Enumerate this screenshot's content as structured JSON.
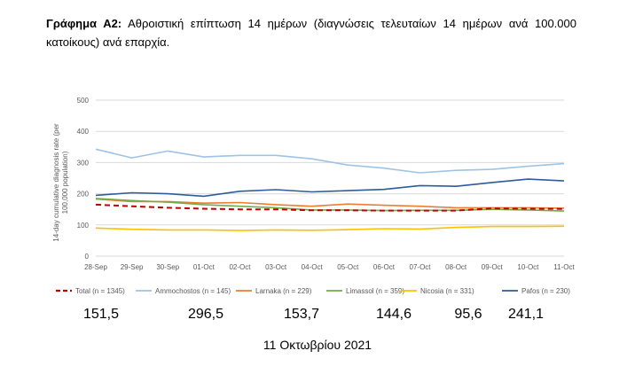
{
  "caption": {
    "label": "Γράφημα Α2:",
    "text": "Αθροιστική επίπτωση 14 ημέρων (διαγνώσεις τελευταίων 14 ημέρων ανά 100.000 κατοίκους) ανά επαρχία."
  },
  "chart_data": {
    "type": "line",
    "ylabel": "14-day cumulative diagnosis rate (per 100,000 population)",
    "xlabel": "",
    "ylim": [
      0,
      500
    ],
    "yticks": [
      "0",
      "100",
      "200",
      "300",
      "400",
      "500"
    ],
    "grid": true,
    "legend_position": "bottom",
    "categories": [
      "28-Sep",
      "29-Sep",
      "30-Sep",
      "01-Oct",
      "02-Oct",
      "03-Oct",
      "04-Oct",
      "05-Oct",
      "06-Oct",
      "07-Oct",
      "08-Oct",
      "09-Oct",
      "10-Oct",
      "11-Oct"
    ],
    "series": [
      {
        "name": "Total (n = 1345)",
        "color": "#c00000",
        "dashed": true,
        "values": [
          165,
          160,
          155,
          152,
          150,
          150,
          147,
          147,
          146,
          146,
          146,
          153,
          152,
          151.5
        ]
      },
      {
        "name": "Ammochostos (n = 145)",
        "color": "#9dc3e6",
        "dashed": false,
        "values": [
          343,
          315,
          337,
          318,
          323,
          323,
          312,
          292,
          282,
          267,
          275,
          278,
          288,
          296.5
        ]
      },
      {
        "name": "Larnaka (n = 229)",
        "color": "#ed7d31",
        "dashed": false,
        "values": [
          183,
          175,
          175,
          170,
          172,
          165,
          160,
          167,
          163,
          160,
          155,
          155,
          155,
          153.7
        ]
      },
      {
        "name": "Limassol (n = 359)",
        "color": "#70ad47",
        "dashed": false,
        "values": [
          185,
          178,
          173,
          165,
          160,
          155,
          148,
          148,
          146,
          147,
          147,
          150,
          148,
          144.6
        ]
      },
      {
        "name": "Nicosia (n = 331)",
        "color": "#ffc000",
        "dashed": false,
        "values": [
          90,
          86,
          84,
          84,
          82,
          84,
          83,
          85,
          88,
          87,
          92,
          95,
          95,
          95.6
        ]
      },
      {
        "name": "Pafos (n = 230)",
        "color": "#2e5c9a",
        "dashed": false,
        "values": [
          195,
          203,
          200,
          192,
          208,
          213,
          206,
          210,
          214,
          226,
          224,
          236,
          247,
          241.1
        ]
      }
    ]
  },
  "latest_values": [
    "151,5",
    "296,5",
    "153,7",
    "144,6",
    "95,6",
    "241,1"
  ],
  "date_label": "11 Οκτωβρίου 2021"
}
